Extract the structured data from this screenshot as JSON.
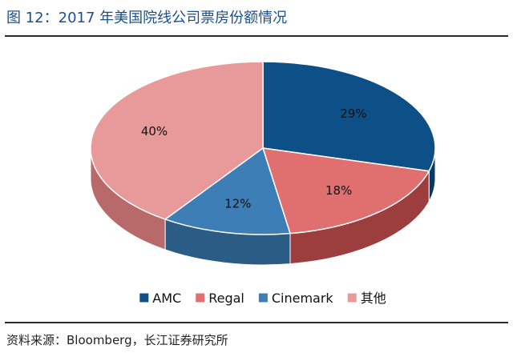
{
  "figure": {
    "title": "图 12：2017 年美国院线公司票房份额情况",
    "source": "资料来源：Bloomberg，长江证券研究所"
  },
  "chart_data": {
    "type": "pie",
    "style": "3d",
    "title": "",
    "labels": [
      "AMC",
      "Regal",
      "Cinemark",
      "其他"
    ],
    "values": [
      29,
      18,
      12,
      40
    ],
    "value_labels": [
      "29%",
      "18%",
      "12%",
      "40%"
    ],
    "colors": [
      "#0d4f87",
      "#e07070",
      "#3c7eb5",
      "#e89a9a"
    ],
    "side_colors": [
      "#0a3a63",
      "#9c3e3e",
      "#2a5c86",
      "#b86a6a"
    ],
    "legend_position": "bottom"
  }
}
